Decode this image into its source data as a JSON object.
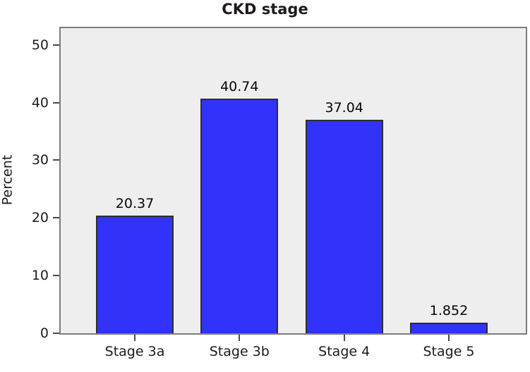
{
  "figure": {
    "title": "CKD stage",
    "y_axis_label": "Percent"
  },
  "chart_data": {
    "type": "bar",
    "title": "CKD stage",
    "xlabel": "",
    "ylabel": "Percent",
    "categories": [
      "Stage 3a",
      "Stage 3b",
      "Stage 4",
      "Stage 5"
    ],
    "values": [
      20.37,
      40.74,
      37.04,
      1.852
    ],
    "value_labels": [
      "20.37",
      "40.74",
      "37.04",
      "1.852"
    ],
    "ytick_labels": [
      "0",
      "10",
      "20",
      "30",
      "40",
      "50"
    ],
    "yticks": [
      0,
      10,
      20,
      30,
      40,
      50
    ],
    "ylim": [
      0,
      52.9
    ],
    "grid": false,
    "legend": "none",
    "colors": {
      "bar_fill": "#3133FA",
      "bar_border": "#2E2E2E",
      "plot_bg": "#EFEEEE",
      "plot_border": "#7C7C7C",
      "tick": "#4A4A4A",
      "text": "#1E1A1B",
      "page_bg": "#FFFFFF"
    }
  }
}
